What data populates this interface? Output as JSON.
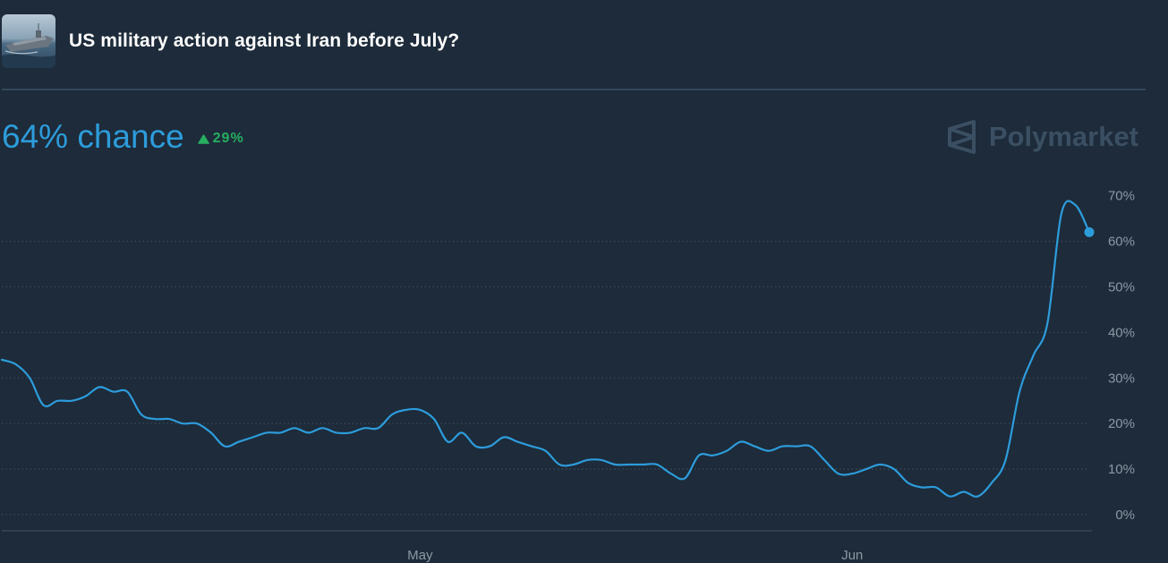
{
  "market": {
    "title": "US military action against Iran before July?",
    "chance_text": "64% chance",
    "change_text": "29%",
    "change_direction": "up",
    "brand_name": "Polymarket",
    "thumbnail_icon": "warship-photo"
  },
  "colors": {
    "background": "#1d2b3a",
    "line": "#2d9cdb",
    "up": "#27ae60",
    "axis_text": "#8b99a6",
    "grid": "#3b4d5f"
  },
  "chart_data": {
    "type": "line",
    "title": "",
    "xlabel": "",
    "ylabel": "",
    "ylim": [
      0,
      70
    ],
    "y_ticks": [
      0,
      10,
      20,
      30,
      40,
      50,
      60,
      70
    ],
    "y_tick_labels": [
      "0%",
      "10%",
      "20%",
      "30%",
      "40%",
      "50%",
      "60%",
      "70%"
    ],
    "x_tick_labels": [
      {
        "label": "May",
        "date": "2025-05-01"
      },
      {
        "label": "Jun",
        "date": "2025-06-01"
      }
    ],
    "x_range": [
      "2025-04-01",
      "2025-06-18"
    ],
    "grid": "horizontal-dotted",
    "series": [
      {
        "values": [
          {
            "x": "2025-04-01",
            "y": 34
          },
          {
            "x": "2025-04-02",
            "y": 33
          },
          {
            "x": "2025-04-03",
            "y": 30
          },
          {
            "x": "2025-04-04",
            "y": 24
          },
          {
            "x": "2025-04-05",
            "y": 25
          },
          {
            "x": "2025-04-06",
            "y": 25
          },
          {
            "x": "2025-04-07",
            "y": 26
          },
          {
            "x": "2025-04-08",
            "y": 28
          },
          {
            "x": "2025-04-09",
            "y": 27
          },
          {
            "x": "2025-04-10",
            "y": 27
          },
          {
            "x": "2025-04-11",
            "y": 22
          },
          {
            "x": "2025-04-12",
            "y": 21
          },
          {
            "x": "2025-04-13",
            "y": 21
          },
          {
            "x": "2025-04-14",
            "y": 20
          },
          {
            "x": "2025-04-15",
            "y": 20
          },
          {
            "x": "2025-04-16",
            "y": 18
          },
          {
            "x": "2025-04-17",
            "y": 15
          },
          {
            "x": "2025-04-18",
            "y": 16
          },
          {
            "x": "2025-04-19",
            "y": 17
          },
          {
            "x": "2025-04-20",
            "y": 18
          },
          {
            "x": "2025-04-21",
            "y": 18
          },
          {
            "x": "2025-04-22",
            "y": 19
          },
          {
            "x": "2025-04-23",
            "y": 18
          },
          {
            "x": "2025-04-24",
            "y": 19
          },
          {
            "x": "2025-04-25",
            "y": 18
          },
          {
            "x": "2025-04-26",
            "y": 18
          },
          {
            "x": "2025-04-27",
            "y": 19
          },
          {
            "x": "2025-04-28",
            "y": 19
          },
          {
            "x": "2025-04-29",
            "y": 22
          },
          {
            "x": "2025-04-30",
            "y": 23
          },
          {
            "x": "2025-05-01",
            "y": 23
          },
          {
            "x": "2025-05-02",
            "y": 21
          },
          {
            "x": "2025-05-03",
            "y": 16
          },
          {
            "x": "2025-05-04",
            "y": 18
          },
          {
            "x": "2025-05-05",
            "y": 15
          },
          {
            "x": "2025-05-06",
            "y": 15
          },
          {
            "x": "2025-05-07",
            "y": 17
          },
          {
            "x": "2025-05-08",
            "y": 16
          },
          {
            "x": "2025-05-09",
            "y": 15
          },
          {
            "x": "2025-05-10",
            "y": 14
          },
          {
            "x": "2025-05-11",
            "y": 11
          },
          {
            "x": "2025-05-12",
            "y": 11
          },
          {
            "x": "2025-05-13",
            "y": 12
          },
          {
            "x": "2025-05-14",
            "y": 12
          },
          {
            "x": "2025-05-15",
            "y": 11
          },
          {
            "x": "2025-05-16",
            "y": 11
          },
          {
            "x": "2025-05-17",
            "y": 11
          },
          {
            "x": "2025-05-18",
            "y": 11
          },
          {
            "x": "2025-05-19",
            "y": 9
          },
          {
            "x": "2025-05-20",
            "y": 8
          },
          {
            "x": "2025-05-21",
            "y": 13
          },
          {
            "x": "2025-05-22",
            "y": 13
          },
          {
            "x": "2025-05-23",
            "y": 14
          },
          {
            "x": "2025-05-24",
            "y": 16
          },
          {
            "x": "2025-05-25",
            "y": 15
          },
          {
            "x": "2025-05-26",
            "y": 14
          },
          {
            "x": "2025-05-27",
            "y": 15
          },
          {
            "x": "2025-05-28",
            "y": 15
          },
          {
            "x": "2025-05-29",
            "y": 15
          },
          {
            "x": "2025-05-30",
            "y": 12
          },
          {
            "x": "2025-05-31",
            "y": 9
          },
          {
            "x": "2025-06-01",
            "y": 9
          },
          {
            "x": "2025-06-02",
            "y": 10
          },
          {
            "x": "2025-06-03",
            "y": 11
          },
          {
            "x": "2025-06-04",
            "y": 10
          },
          {
            "x": "2025-06-05",
            "y": 7
          },
          {
            "x": "2025-06-06",
            "y": 6
          },
          {
            "x": "2025-06-07",
            "y": 6
          },
          {
            "x": "2025-06-08",
            "y": 4
          },
          {
            "x": "2025-06-09",
            "y": 5
          },
          {
            "x": "2025-06-10",
            "y": 4
          },
          {
            "x": "2025-06-11",
            "y": 7
          },
          {
            "x": "2025-06-12",
            "y": 12
          },
          {
            "x": "2025-06-13",
            "y": 27
          },
          {
            "x": "2025-06-14",
            "y": 35
          },
          {
            "x": "2025-06-15",
            "y": 42
          },
          {
            "x": "2025-06-16",
            "y": 66
          },
          {
            "x": "2025-06-17",
            "y": 68
          },
          {
            "x": "2025-06-18",
            "y": 62
          }
        ]
      }
    ]
  }
}
